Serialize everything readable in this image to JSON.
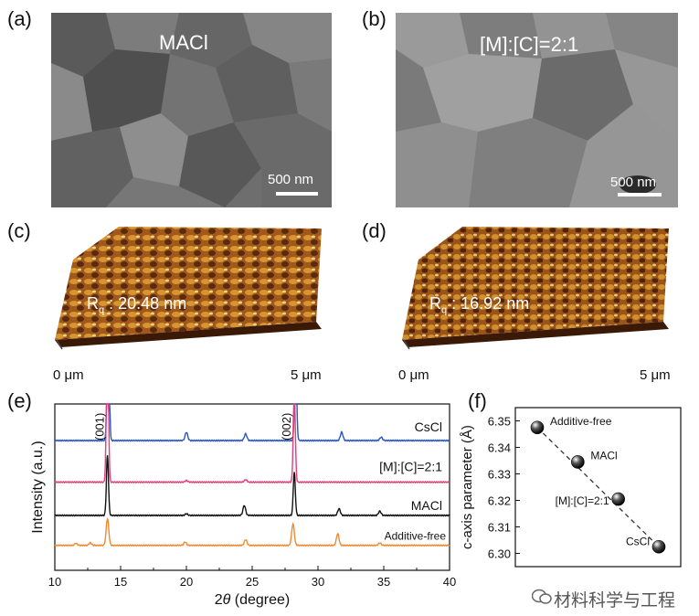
{
  "panels": {
    "a": {
      "letter": "(a)",
      "label": "MACl",
      "scale": "500 nm"
    },
    "b": {
      "letter": "(b)",
      "label": "[M]:[C]=2:1",
      "scale": "500 nm"
    },
    "c": {
      "letter": "(c)",
      "rq_sym": "R",
      "rq_sub": "q",
      "rq_value": ": 20.48 nm",
      "axis_start": "0 μm",
      "axis_end": "5 μm"
    },
    "d": {
      "letter": "(d)",
      "rq_sym": "R",
      "rq_sub": "q",
      "rq_value": ": 16.92 nm",
      "axis_start": "0 μm",
      "axis_end": "5 μm"
    },
    "e": {
      "letter": "(e)"
    },
    "f": {
      "letter": "(f)"
    }
  },
  "watermark": "材料科学与工程",
  "chart_data": [
    {
      "type": "line",
      "panel": "e",
      "xlabel": "2θ (degree)",
      "xlabel_prefix": "2",
      "xlabel_theta": "θ",
      "xlabel_suffix": " (degree)",
      "ylabel": "Intensity (a.u.)",
      "xlim": [
        10,
        40
      ],
      "xticks": [
        10,
        15,
        20,
        25,
        30,
        35,
        40
      ],
      "peak_labels": [
        {
          "x": 14.0,
          "text": "(001)"
        },
        {
          "x": 28.2,
          "text": "(002)"
        }
      ],
      "series": [
        {
          "name": "CsCl",
          "color": "#2a56c6",
          "baseline": 0.78,
          "peaks": [
            [
              14.05,
              1.0
            ],
            [
              28.3,
              0.55
            ],
            [
              20.0,
              0.05
            ],
            [
              24.5,
              0.04
            ],
            [
              31.8,
              0.05
            ],
            [
              34.8,
              0.02
            ]
          ]
        },
        {
          "name": "[M]:[C]=2:1",
          "color": "#e0407a",
          "baseline": 0.53,
          "peaks": [
            [
              14.0,
              0.95
            ],
            [
              28.2,
              0.55
            ],
            [
              24.5,
              0.015
            ],
            [
              20.0,
              0.01
            ]
          ]
        },
        {
          "name": "MACl",
          "color": "#111111",
          "baseline": 0.33,
          "peaks": [
            [
              14.0,
              0.36
            ],
            [
              28.2,
              0.26
            ],
            [
              24.4,
              0.06
            ],
            [
              31.6,
              0.04
            ],
            [
              34.7,
              0.025
            ],
            [
              20.0,
              0.01
            ]
          ]
        },
        {
          "name": "Additive-free",
          "color": "#f08a30",
          "baseline": 0.15,
          "peaks": [
            [
              14.0,
              0.16
            ],
            [
              28.1,
              0.13
            ],
            [
              31.5,
              0.07
            ],
            [
              24.5,
              0.035
            ],
            [
              19.9,
              0.02
            ],
            [
              12.7,
              0.015
            ],
            [
              11.6,
              0.012
            ],
            [
              34.7,
              0.015
            ]
          ]
        }
      ]
    },
    {
      "type": "scatter",
      "panel": "f",
      "ylabel": "c-axis parameter (Å)",
      "ylim": [
        6.295,
        6.355
      ],
      "yticks": [
        6.3,
        6.31,
        6.32,
        6.33,
        6.34,
        6.35
      ],
      "ytick_labels": [
        "6.30",
        "6.31",
        "6.32",
        "6.33",
        "6.34",
        "6.35"
      ],
      "categories": [
        "Additive-free",
        "MACl",
        "[M]:[C]=2:1",
        "CsCl"
      ],
      "values": [
        6.3475,
        6.3345,
        6.3205,
        6.3025
      ],
      "trendline": "dashed"
    }
  ]
}
